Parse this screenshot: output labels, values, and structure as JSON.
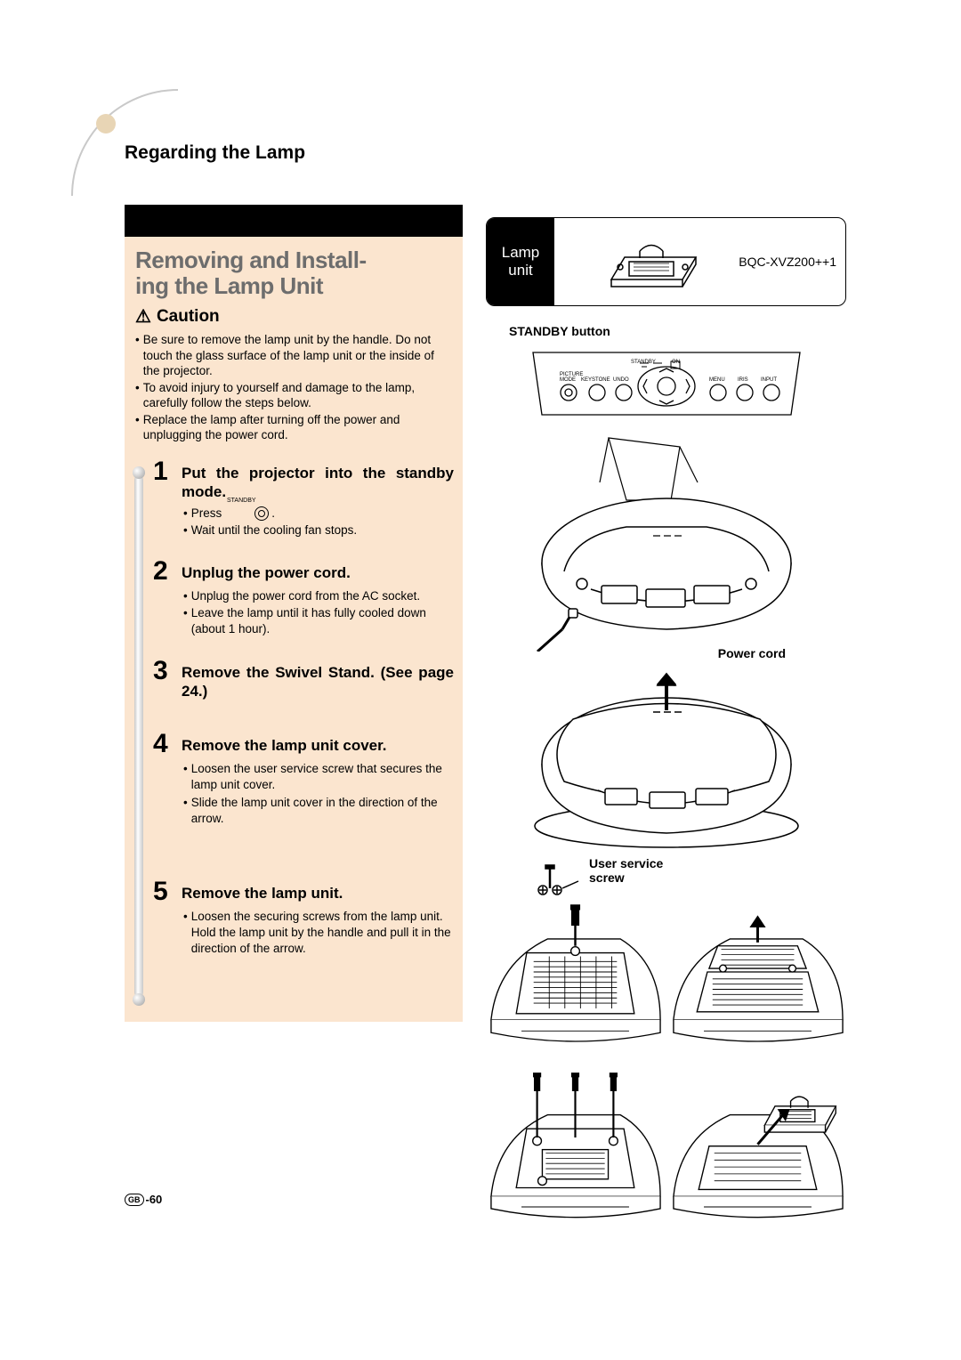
{
  "colors": {
    "peach_bg": "#fbe5cf",
    "section_title": "#6d6d6d",
    "corner_fill": "#e8d5b5",
    "arc": "#c9c9c9"
  },
  "page_title": "Regarding the Lamp",
  "section_title_l1": "Removing and Install-",
  "section_title_l2": "ing the Lamp Unit",
  "caution_label": "Caution",
  "caution_bullets": [
    "Be sure to remove the lamp unit by the handle. Do not touch the glass surface of the lamp unit or the inside of the projector.",
    "To avoid injury to yourself and damage to the lamp, carefully follow the steps below.",
    "Replace the lamp after turning off the power and unplugging the power cord."
  ],
  "steps": [
    {
      "num": "1",
      "title": "Put the projector into the standby mode.",
      "subs": [
        {
          "prefix": "Press",
          "icon": true,
          "icon_label": "STANDBY",
          "suffix": "."
        },
        {
          "text": "Wait until the cooling fan stops."
        }
      ]
    },
    {
      "num": "2",
      "title": "Unplug the power cord.",
      "subs": [
        {
          "text": "Unplug the power cord from the AC socket."
        },
        {
          "text": "Leave the lamp until it has fully cooled down (about 1 hour)."
        }
      ]
    },
    {
      "num": "3",
      "title": "Remove the Swivel Stand. (See page 24.)",
      "subs": []
    },
    {
      "num": "4",
      "title": "Remove the lamp unit cover.",
      "subs": [
        {
          "text": "Loosen the user service screw that secures the lamp unit cover."
        },
        {
          "text": "Slide the lamp unit cover in the direction of the arrow."
        }
      ]
    },
    {
      "num": "5",
      "title": "Remove the lamp unit.",
      "subs": [
        {
          "text": "Loosen the securing screws from the lamp unit. Hold the lamp unit by the handle and pull it in the direction of the arrow."
        }
      ]
    }
  ],
  "lamp_box": {
    "label_l1": "Lamp",
    "label_l2": "unit",
    "code": "BQC-XVZ200++1"
  },
  "callouts": {
    "standby_button": "STANDBY button",
    "power_cord": "Power cord",
    "user_service_l1": "User service",
    "user_service_l2": "screw"
  },
  "page_num_prefix": "GB",
  "page_num": "-60"
}
